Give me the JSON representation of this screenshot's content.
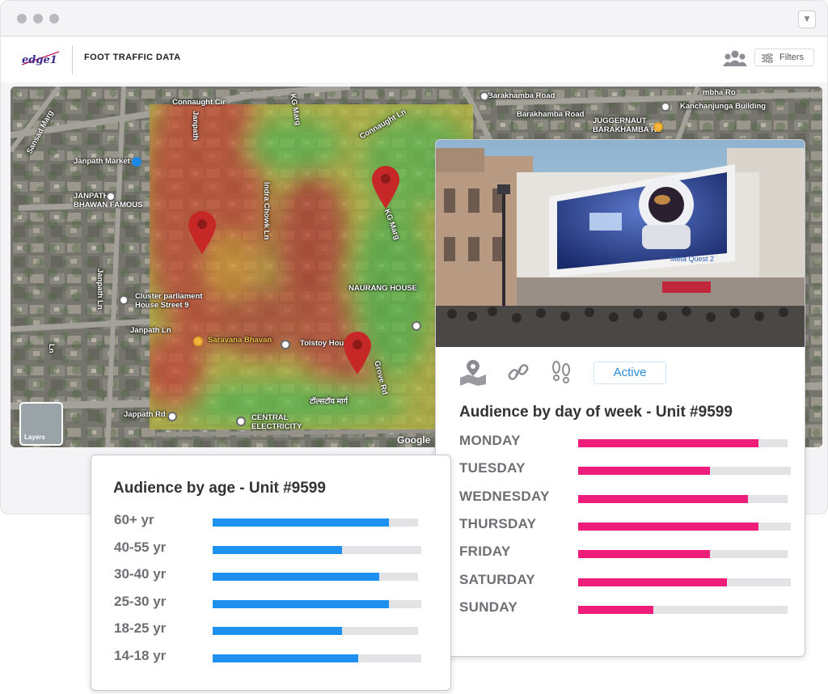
{
  "header": {
    "logo_text": "edge1",
    "title": "FOOT TRAFFIC DATA",
    "filters_label": "Filters"
  },
  "map": {
    "labels": {
      "connaught_cir": "Connaught Cir",
      "connaught_ln": "Connaught Ln",
      "sansad_marg": "Sansad Marg",
      "janpath_market": "Janpath Market",
      "janpath_bhawan": "JANPATH\nBHAWAN FAMOUS",
      "janpath": "Janpath",
      "janpath_ln": "Janpath Ln",
      "janpath_ln2": "Janpath Ln",
      "cluster_parliament": "Cluster parliament\nHouse Street 9",
      "saravana_bhavan": "Saravana Bhavan",
      "tolstoy_house": "Tolstoy House",
      "tolstoy_marg": "टॉल्सटॉय मार्ग",
      "kg_marg": "KG Marg",
      "kg_marg_top": "KG Marg",
      "barakhamba_road": "Barakhamba Road",
      "barakhamba_road2": "Barakhamba Road",
      "kanchenjunga": "Kanchanjunga Building",
      "juggernaut": "JUGGERNAUT\nBARAKHAMBA RD",
      "indra_chowk": "Indra Chowk Ln",
      "central_electricity": "CENTRAL\nELECTRICITY",
      "jappath_rd": "Jappath Rd",
      "naurang_house": "NAURANG HOUSE",
      "gross_rd": "Grove Rd",
      "road_sw": "Ln",
      "road_e1": "mbha Ro"
    },
    "layers_label": "Layers",
    "attribution": "Google"
  },
  "unit_card": {
    "billboard_brand": "Meta Quest 2",
    "status": "Active",
    "day_title": "Audience  by day of week - Unit #9599",
    "accent_color": "#ee1d79",
    "days": [
      {
        "label": "MONDAY",
        "value": 0.86
      },
      {
        "label": "TUESDAY",
        "value": 0.63
      },
      {
        "label": "WEDNESDAY",
        "value": 0.81
      },
      {
        "label": "THURSDAY",
        "value": 0.86
      },
      {
        "label": "FRIDAY",
        "value": 0.63
      },
      {
        "label": "SATURDAY",
        "value": 0.71
      },
      {
        "label": "SUNDAY",
        "value": 0.36
      }
    ]
  },
  "age_card": {
    "title": "Audience by age - Unit #9599",
    "accent_color": "#1e90ee",
    "ages": [
      {
        "label": "60+ yr",
        "value": 0.86
      },
      {
        "label": "40-55 yr",
        "value": 0.63
      },
      {
        "label": "30-40 yr",
        "value": 0.81
      },
      {
        "label": "25-30 yr",
        "value": 0.86
      },
      {
        "label": "18-25 yr",
        "value": 0.63
      },
      {
        "label": "14-18 yr",
        "value": 0.71
      }
    ]
  }
}
